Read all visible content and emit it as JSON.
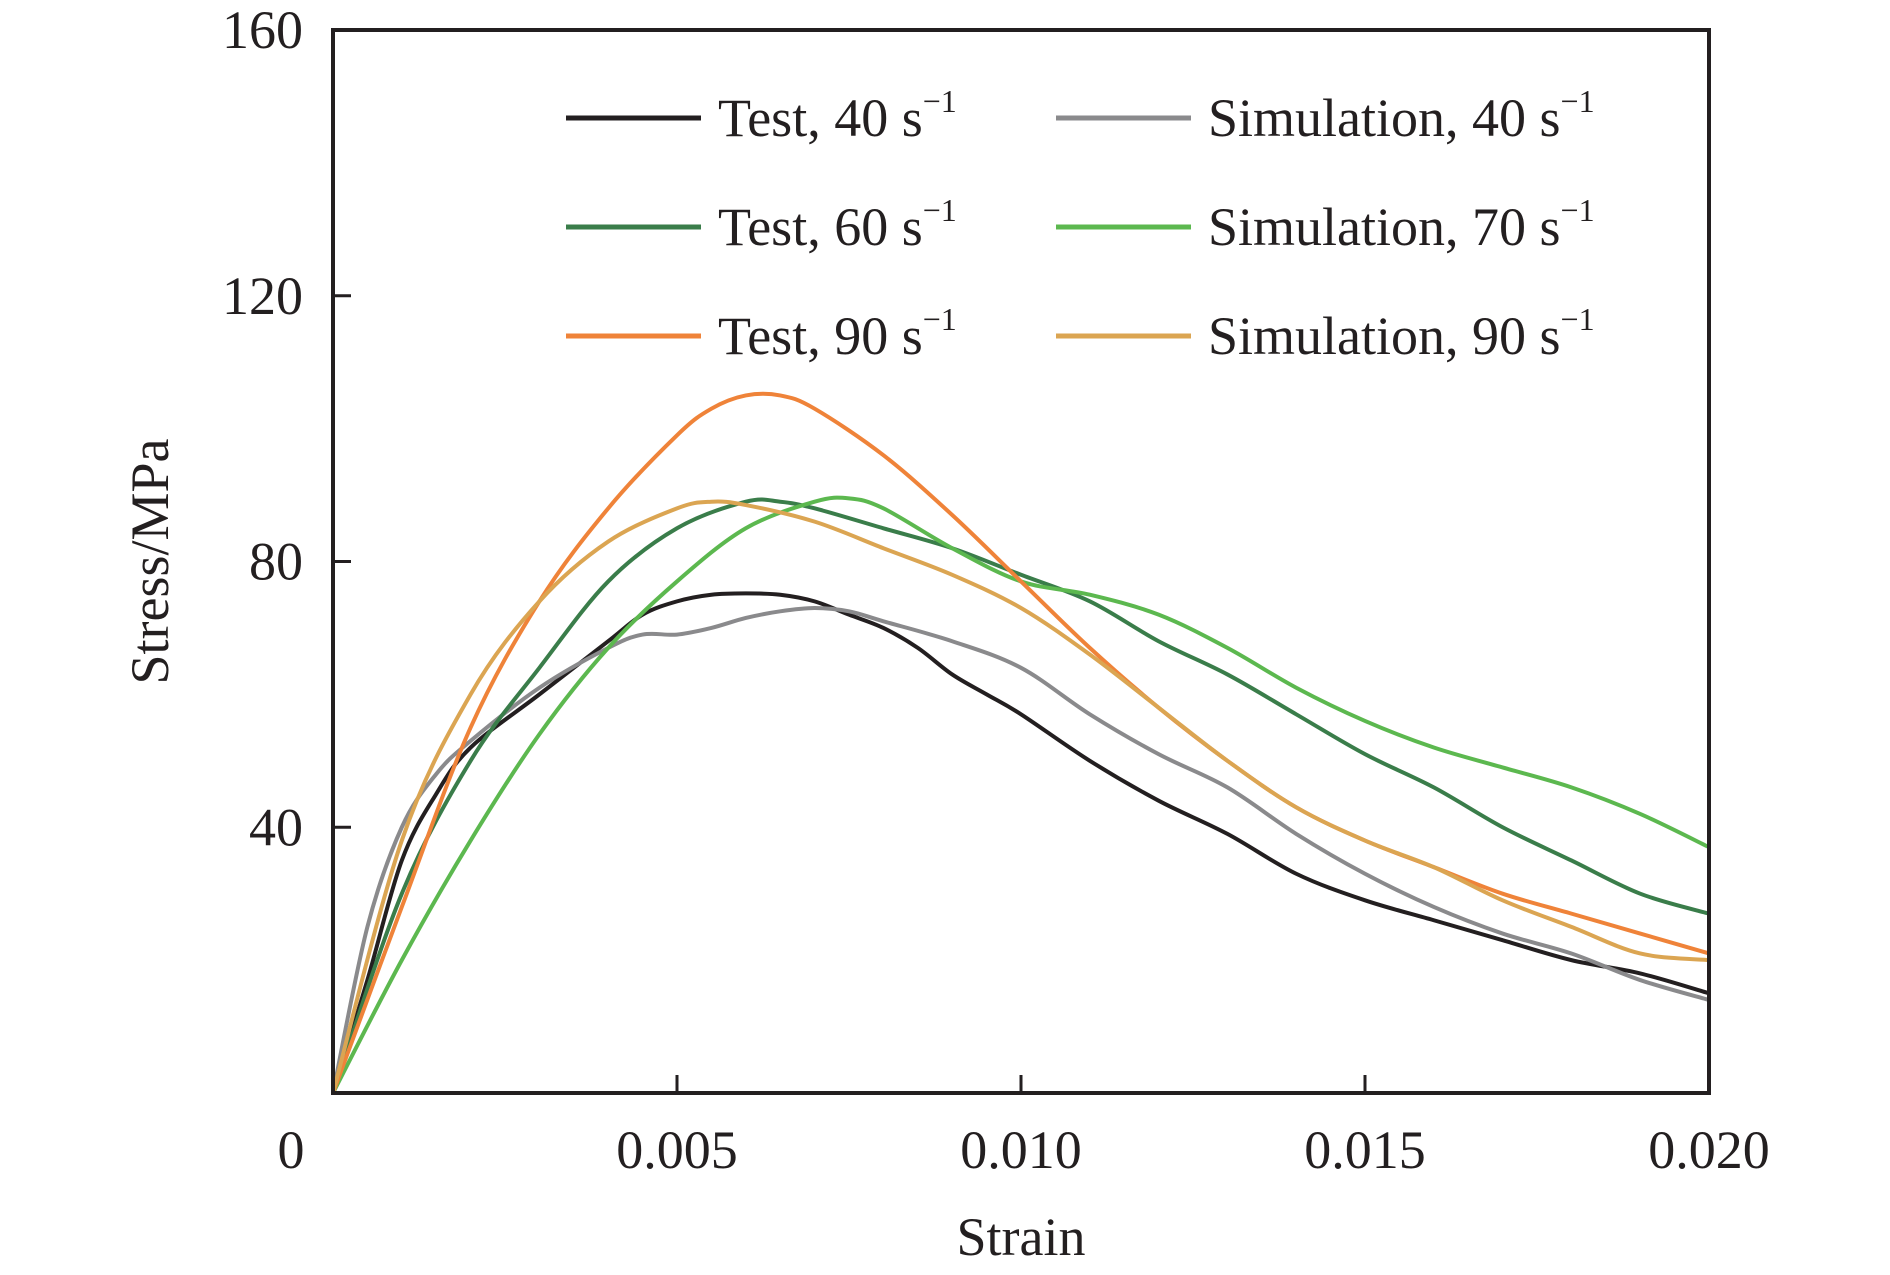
{
  "chart_data": {
    "type": "line",
    "title": "",
    "xlabel": "Strain",
    "ylabel": "Stress/MPa",
    "xlim": [
      0,
      0.02
    ],
    "ylim": [
      0,
      160
    ],
    "xticks": [
      0,
      0.005,
      0.01,
      0.015,
      0.02
    ],
    "xtick_labels": [
      "0",
      "0.005",
      "0.010",
      "0.015",
      "0.020"
    ],
    "yticks": [
      40,
      80,
      120,
      160
    ],
    "ytick_labels": [
      "40",
      "80",
      "120",
      "160"
    ],
    "grid": false,
    "legend_position": "top-right",
    "series": [
      {
        "name": "Test, 40 s",
        "sup": "−1",
        "color": "#231f20",
        "points": [
          [
            0,
            0
          ],
          [
            0.0005,
            17
          ],
          [
            0.001,
            35
          ],
          [
            0.0015,
            45
          ],
          [
            0.002,
            52
          ],
          [
            0.003,
            60
          ],
          [
            0.004,
            68
          ],
          [
            0.0045,
            72
          ],
          [
            0.005,
            74
          ],
          [
            0.0055,
            75
          ],
          [
            0.006,
            75.2
          ],
          [
            0.0065,
            75
          ],
          [
            0.007,
            74
          ],
          [
            0.0075,
            72
          ],
          [
            0.008,
            70
          ],
          [
            0.0085,
            67
          ],
          [
            0.009,
            63
          ],
          [
            0.0095,
            60
          ],
          [
            0.01,
            57
          ],
          [
            0.011,
            50
          ],
          [
            0.012,
            44
          ],
          [
            0.013,
            39
          ],
          [
            0.014,
            33
          ],
          [
            0.015,
            29
          ],
          [
            0.016,
            26
          ],
          [
            0.017,
            23
          ],
          [
            0.018,
            20
          ],
          [
            0.019,
            18
          ],
          [
            0.02,
            15
          ]
        ]
      },
      {
        "name": "Simulation, 40 s",
        "sup": "−1",
        "color": "#8a8a8c",
        "points": [
          [
            0,
            0
          ],
          [
            0.0005,
            25
          ],
          [
            0.001,
            40
          ],
          [
            0.0015,
            48
          ],
          [
            0.002,
            53
          ],
          [
            0.003,
            61
          ],
          [
            0.004,
            67
          ],
          [
            0.0045,
            69
          ],
          [
            0.005,
            69
          ],
          [
            0.0055,
            70
          ],
          [
            0.006,
            71.5
          ],
          [
            0.0065,
            72.5
          ],
          [
            0.007,
            73
          ],
          [
            0.0075,
            72.5
          ],
          [
            0.008,
            71
          ],
          [
            0.009,
            68
          ],
          [
            0.01,
            64
          ],
          [
            0.011,
            57
          ],
          [
            0.012,
            51
          ],
          [
            0.013,
            46
          ],
          [
            0.014,
            39
          ],
          [
            0.015,
            33
          ],
          [
            0.016,
            28
          ],
          [
            0.017,
            24
          ],
          [
            0.018,
            21
          ],
          [
            0.019,
            17
          ],
          [
            0.02,
            14
          ]
        ]
      },
      {
        "name": "Test, 60 s",
        "sup": "−1",
        "color": "#3a7d4a",
        "points": [
          [
            0,
            0
          ],
          [
            0.001,
            30
          ],
          [
            0.002,
            50
          ],
          [
            0.003,
            64
          ],
          [
            0.004,
            77
          ],
          [
            0.005,
            85
          ],
          [
            0.006,
            89
          ],
          [
            0.0065,
            89
          ],
          [
            0.007,
            88
          ],
          [
            0.008,
            85
          ],
          [
            0.009,
            82
          ],
          [
            0.01,
            78
          ],
          [
            0.011,
            74
          ],
          [
            0.012,
            68
          ],
          [
            0.013,
            63
          ],
          [
            0.014,
            57
          ],
          [
            0.015,
            51
          ],
          [
            0.016,
            46
          ],
          [
            0.017,
            40
          ],
          [
            0.018,
            35
          ],
          [
            0.019,
            30
          ],
          [
            0.02,
            27
          ]
        ]
      },
      {
        "name": "Simulation, 70 s",
        "sup": "−1",
        "color": "#5cb84f",
        "points": [
          [
            0,
            0
          ],
          [
            0.001,
            20
          ],
          [
            0.002,
            38
          ],
          [
            0.003,
            54
          ],
          [
            0.004,
            67
          ],
          [
            0.005,
            77
          ],
          [
            0.006,
            85
          ],
          [
            0.007,
            89
          ],
          [
            0.0075,
            89.5
          ],
          [
            0.008,
            88
          ],
          [
            0.009,
            82
          ],
          [
            0.01,
            77
          ],
          [
            0.011,
            75
          ],
          [
            0.012,
            72
          ],
          [
            0.013,
            67
          ],
          [
            0.014,
            61
          ],
          [
            0.015,
            56
          ],
          [
            0.016,
            52
          ],
          [
            0.017,
            49
          ],
          [
            0.018,
            46
          ],
          [
            0.019,
            42
          ],
          [
            0.02,
            37
          ]
        ]
      },
      {
        "name": "Test, 90 s",
        "sup": "−1",
        "color": "#ef8339",
        "points": [
          [
            0,
            0
          ],
          [
            0.001,
            28
          ],
          [
            0.002,
            55
          ],
          [
            0.003,
            74
          ],
          [
            0.004,
            88
          ],
          [
            0.005,
            99
          ],
          [
            0.0055,
            103
          ],
          [
            0.006,
            105
          ],
          [
            0.0065,
            105
          ],
          [
            0.007,
            103
          ],
          [
            0.008,
            96
          ],
          [
            0.009,
            87
          ],
          [
            0.01,
            77
          ],
          [
            0.011,
            67
          ],
          [
            0.012,
            58
          ],
          [
            0.013,
            50
          ],
          [
            0.014,
            43
          ],
          [
            0.015,
            38
          ],
          [
            0.016,
            34
          ],
          [
            0.017,
            30
          ],
          [
            0.018,
            27
          ],
          [
            0.019,
            24
          ],
          [
            0.02,
            21
          ]
        ]
      },
      {
        "name": "Simulation, 90 s",
        "sup": "−1",
        "color": "#dba552",
        "points": [
          [
            0,
            0
          ],
          [
            0.001,
            38
          ],
          [
            0.002,
            60
          ],
          [
            0.003,
            74
          ],
          [
            0.004,
            83
          ],
          [
            0.005,
            88
          ],
          [
            0.0055,
            89
          ],
          [
            0.006,
            88.5
          ],
          [
            0.007,
            86
          ],
          [
            0.008,
            82
          ],
          [
            0.009,
            78
          ],
          [
            0.01,
            73
          ],
          [
            0.011,
            66
          ],
          [
            0.012,
            58
          ],
          [
            0.013,
            50
          ],
          [
            0.014,
            43
          ],
          [
            0.015,
            38
          ],
          [
            0.016,
            34
          ],
          [
            0.017,
            29
          ],
          [
            0.018,
            25
          ],
          [
            0.019,
            21
          ],
          [
            0.02,
            20
          ]
        ]
      }
    ]
  }
}
